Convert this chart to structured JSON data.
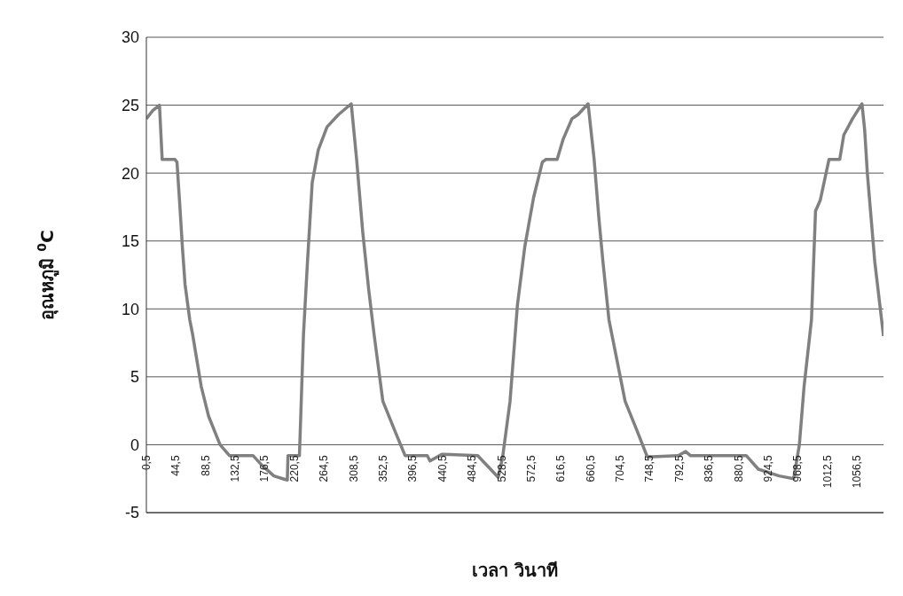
{
  "chart_data": {
    "type": "line",
    "xlabel": "เวลา วินาที",
    "ylabel": "อุณหภูมิ $^{0}$C",
    "xlim": [
      0.5,
      1096
    ],
    "xticks": [
      {
        "value": 0.5,
        "label": "0,5"
      },
      {
        "value": 44.5,
        "label": "44,5"
      },
      {
        "value": 88.5,
        "label": "88,5"
      },
      {
        "value": 132.5,
        "label": "132,5"
      },
      {
        "value": 176.5,
        "label": "176,5"
      },
      {
        "value": 220.5,
        "label": "220,5"
      },
      {
        "value": 264.5,
        "label": "264,5"
      },
      {
        "value": 308.5,
        "label": "308,5"
      },
      {
        "value": 352.5,
        "label": "352,5"
      },
      {
        "value": 396.5,
        "label": "396,5"
      },
      {
        "value": 440.5,
        "label": "440,5"
      },
      {
        "value": 484.5,
        "label": "484,5"
      },
      {
        "value": 528.5,
        "label": "528,5"
      },
      {
        "value": 572.5,
        "label": "572,5"
      },
      {
        "value": 616.5,
        "label": "616,5"
      },
      {
        "value": 660.5,
        "label": "660,5"
      },
      {
        "value": 704.5,
        "label": "704,5"
      },
      {
        "value": 748.5,
        "label": "748,5"
      },
      {
        "value": 792.5,
        "label": "792,5"
      },
      {
        "value": 836.5,
        "label": "836,5"
      },
      {
        "value": 880.5,
        "label": "880,5"
      },
      {
        "value": 924.5,
        "label": "924,5"
      },
      {
        "value": 968.5,
        "label": "968,5"
      },
      {
        "value": 1012.5,
        "label": "1012,5"
      },
      {
        "value": 1056.5,
        "label": "1056,5"
      }
    ],
    "ylim": [
      -5,
      30
    ],
    "yticks": [
      -5,
      0,
      5,
      10,
      15,
      20,
      25,
      30
    ],
    "grid": "y",
    "legend": false,
    "marker": "none",
    "line_style": "solid",
    "x": [
      0.5,
      10,
      20,
      24,
      43,
      46,
      50,
      54,
      58,
      65,
      69,
      82,
      93,
      110,
      124,
      159,
      172,
      190,
      203,
      210,
      211,
      228,
      234,
      240,
      247,
      256,
      269,
      286,
      305,
      313,
      322,
      331,
      339,
      352,
      370,
      385,
      418,
      422,
      440,
      493,
      523.5,
      530,
      541,
      552,
      563,
      576,
      589,
      594,
      611,
      620,
      633,
      642,
      657,
      666,
      673,
      679,
      688,
      712,
      730,
      745,
      791,
      802,
      809,
      892,
      910,
      941,
      962.5,
      971,
      978,
      989,
      995,
      1002,
      1015,
      1031,
      1037,
      1050,
      1064,
      1068,
      1072,
      1083,
      1096
    ],
    "series": [
      {
        "color": "#808080",
        "values": [
          24,
          24.6,
          25,
          21,
          21,
          20.8,
          17.8,
          14.6,
          11.8,
          9.2,
          8.2,
          4.3,
          2.1,
          0,
          -0.8,
          -0.8,
          -1.5,
          -2.3,
          -2.5,
          -2.6,
          -0.8,
          -0.8,
          8.1,
          13.5,
          19.3,
          21.7,
          23.4,
          24.3,
          25.1,
          21,
          15.7,
          11.4,
          8.1,
          3.2,
          1,
          -0.8,
          -0.8,
          -1.2,
          -0.7,
          -0.8,
          -2.4,
          -0.9,
          3.2,
          10.3,
          14.6,
          18.2,
          20.8,
          21,
          21,
          22.5,
          24,
          24.3,
          25.1,
          21,
          16.7,
          13.5,
          9.2,
          3.2,
          1,
          -0.9,
          -0.8,
          -0.5,
          -0.8,
          -0.8,
          -1.8,
          -2.3,
          -2.5,
          0,
          4.3,
          9.2,
          17.2,
          18,
          21,
          21,
          22.8,
          24,
          25.1,
          23.2,
          20,
          13.5,
          8
        ]
      }
    ]
  }
}
